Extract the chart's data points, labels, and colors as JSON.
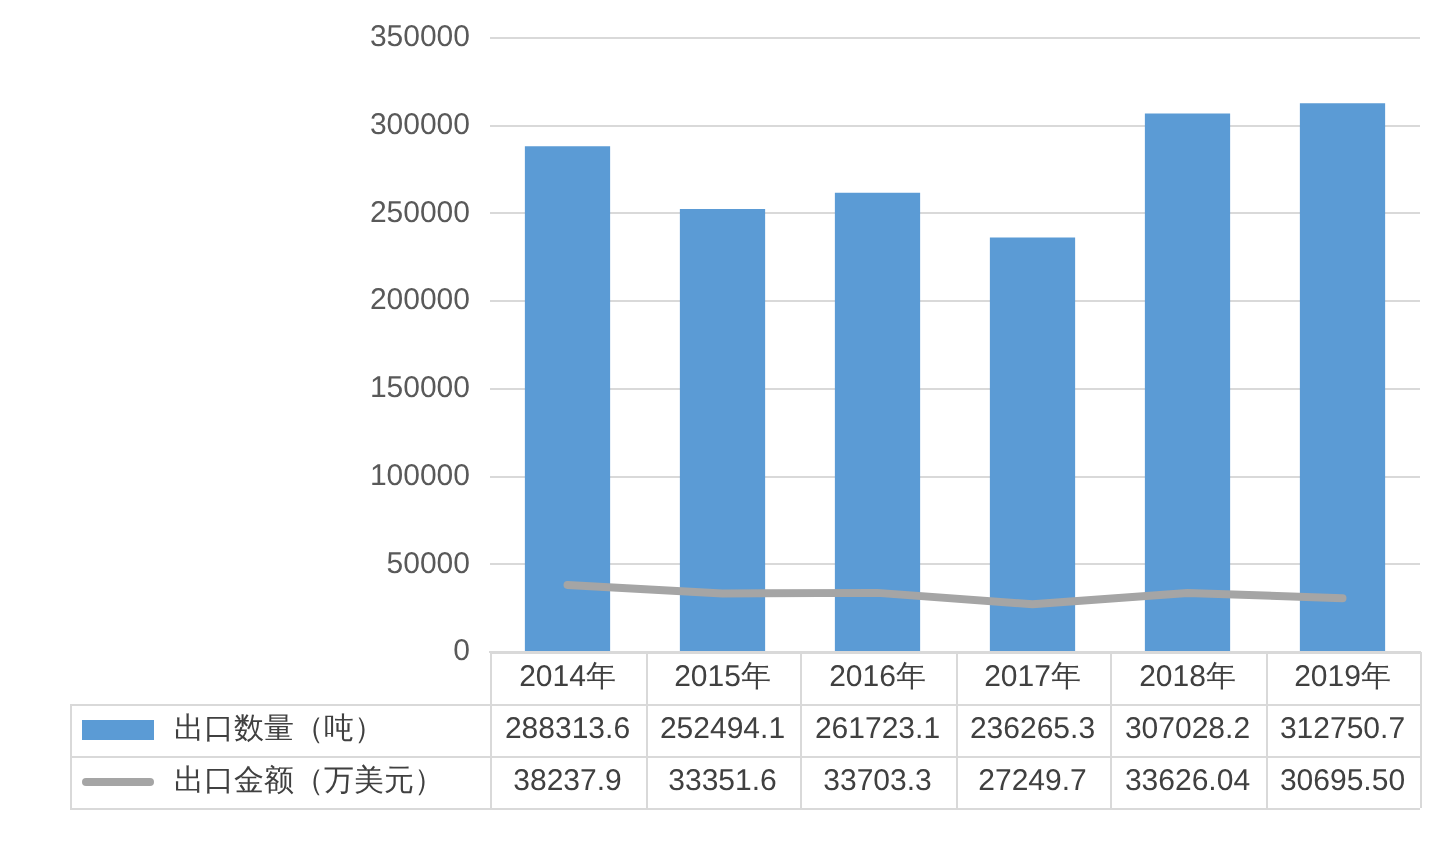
{
  "chart_data": {
    "type": "bar",
    "categories": [
      "2014年",
      "2015年",
      "2016年",
      "2017年",
      "2018年",
      "2019年"
    ],
    "series": [
      {
        "name": "出口数量（吨）",
        "color": "#5b9bd5",
        "values": [
          288313.6,
          252494.1,
          261723.1,
          236265.3,
          307028.2,
          312750.7
        ],
        "value_labels": [
          "288313.6",
          "252494.1",
          "261723.1",
          "236265.3",
          "307028.2",
          "312750.7"
        ]
      },
      {
        "name": "出口金额（万美元）",
        "type": "line",
        "color": "#a5a5a5",
        "values": [
          38237.9,
          33351.6,
          33703.3,
          27249.7,
          33626.04,
          30695.5
        ],
        "value_labels": [
          "38237.9",
          "33351.6",
          "33703.3",
          "27249.7",
          "33626.04",
          "30695.50"
        ]
      }
    ],
    "ylim": [
      0,
      350000
    ],
    "yticks": [
      0,
      50000,
      100000,
      150000,
      200000,
      250000,
      300000,
      350000
    ],
    "grid": "y",
    "legend": "bottom",
    "marker": "none",
    "line_style": "solid"
  }
}
